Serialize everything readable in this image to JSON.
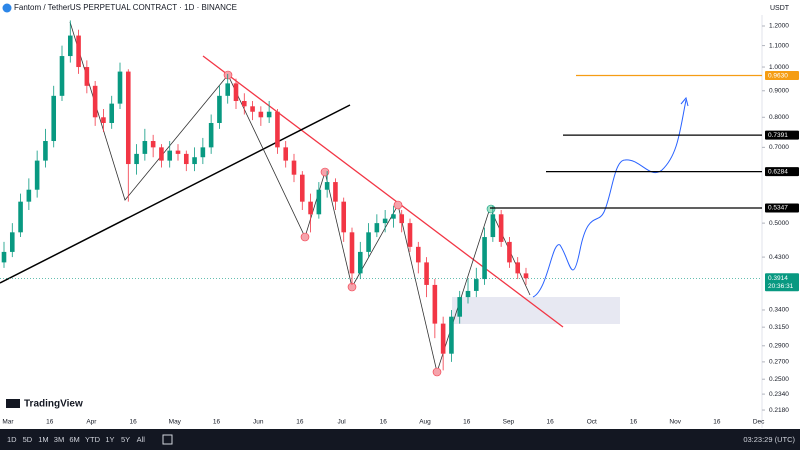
{
  "header": {
    "symbol": "Fantom / TetherUS PERPETUAL CONTRACT · 1D · BINANCE",
    "currency": "USDT",
    "brand": "TradingView"
  },
  "toolbar": {
    "ranges": [
      "1D",
      "5D",
      "1M",
      "3M",
      "6M",
      "YTD",
      "1Y",
      "5Y",
      "All"
    ],
    "clock": "03:23:29 (UTC)"
  },
  "chart_data": {
    "type": "candlestick",
    "up_color": "#089981",
    "down_color": "#f23645",
    "log_scale": true,
    "ylim": [
      0.204,
      1.26
    ],
    "yticks": [
      {
        "value": 1.2,
        "label": "1.2000"
      },
      {
        "value": 1.1,
        "label": "1.1000"
      },
      {
        "value": 1.0,
        "label": "1.0000"
      },
      {
        "value": 0.9,
        "label": "0.9000"
      },
      {
        "value": 0.8,
        "label": "0.8000"
      },
      {
        "value": 0.7,
        "label": "0.7000"
      },
      {
        "value": 0.5,
        "label": "0.5000"
      },
      {
        "value": 0.43,
        "label": "0.4300"
      },
      {
        "value": 0.34,
        "label": "0.3400"
      },
      {
        "value": 0.315,
        "label": "0.3150"
      },
      {
        "value": 0.29,
        "label": "0.2900"
      },
      {
        "value": 0.27,
        "label": "0.2700"
      },
      {
        "value": 0.25,
        "label": "0.2500"
      },
      {
        "value": 0.234,
        "label": "0.2340"
      },
      {
        "value": 0.218,
        "label": "0.2180"
      }
    ],
    "time_labels": [
      "Mar",
      "16",
      "Apr",
      "16",
      "May",
      "16",
      "Jun",
      "16",
      "Jul",
      "16",
      "Aug",
      "16",
      "Sep",
      "16",
      "Oct",
      "16",
      "Nov",
      "16",
      "Dec"
    ],
    "open": [
      0.42,
      0.44,
      0.48,
      0.55,
      0.58,
      0.66,
      0.72,
      0.88,
      1.05,
      1.15,
      1.0,
      0.92,
      0.8,
      0.78,
      0.85,
      0.98,
      0.65,
      0.68,
      0.72,
      0.7,
      0.66,
      0.69,
      0.68,
      0.65,
      0.67,
      0.7,
      0.78,
      0.88,
      0.93,
      0.86,
      0.84,
      0.82,
      0.8,
      0.82,
      0.7,
      0.66,
      0.62,
      0.55,
      0.52,
      0.58,
      0.6,
      0.55,
      0.48,
      0.4,
      0.44,
      0.48,
      0.5,
      0.51,
      0.52,
      0.5,
      0.45,
      0.42,
      0.38,
      0.32,
      0.28,
      0.33,
      0.36,
      0.37,
      0.39,
      0.47,
      0.52,
      0.46,
      0.42,
      0.4
    ],
    "high": [
      0.46,
      0.5,
      0.57,
      0.61,
      0.69,
      0.76,
      0.92,
      1.1,
      1.23,
      1.18,
      1.03,
      0.94,
      0.83,
      0.88,
      1.02,
      0.99,
      0.71,
      0.76,
      0.74,
      0.71,
      0.72,
      0.71,
      0.69,
      0.7,
      0.73,
      0.81,
      0.92,
      0.97,
      0.95,
      0.89,
      0.86,
      0.84,
      0.86,
      0.83,
      0.72,
      0.68,
      0.63,
      0.57,
      0.6,
      0.63,
      0.61,
      0.56,
      0.49,
      0.46,
      0.5,
      0.52,
      0.53,
      0.54,
      0.53,
      0.51,
      0.46,
      0.43,
      0.39,
      0.33,
      0.34,
      0.37,
      0.39,
      0.41,
      0.49,
      0.54,
      0.53,
      0.47,
      0.43,
      0.41
    ],
    "low": [
      0.41,
      0.43,
      0.47,
      0.53,
      0.56,
      0.64,
      0.7,
      0.86,
      1.02,
      0.97,
      0.89,
      0.77,
      0.75,
      0.76,
      0.83,
      0.55,
      0.62,
      0.66,
      0.67,
      0.64,
      0.64,
      0.66,
      0.63,
      0.63,
      0.65,
      0.68,
      0.76,
      0.85,
      0.83,
      0.81,
      0.79,
      0.77,
      0.78,
      0.68,
      0.64,
      0.6,
      0.53,
      0.48,
      0.51,
      0.56,
      0.53,
      0.46,
      0.38,
      0.39,
      0.43,
      0.47,
      0.48,
      0.49,
      0.48,
      0.44,
      0.4,
      0.36,
      0.3,
      0.26,
      0.27,
      0.32,
      0.35,
      0.36,
      0.38,
      0.46,
      0.45,
      0.41,
      0.39,
      0.38
    ],
    "close": [
      0.44,
      0.48,
      0.55,
      0.58,
      0.66,
      0.72,
      0.88,
      1.05,
      1.15,
      1.0,
      0.92,
      0.8,
      0.78,
      0.85,
      0.98,
      0.65,
      0.68,
      0.72,
      0.7,
      0.66,
      0.69,
      0.68,
      0.65,
      0.67,
      0.7,
      0.78,
      0.88,
      0.93,
      0.86,
      0.84,
      0.82,
      0.8,
      0.82,
      0.7,
      0.66,
      0.62,
      0.55,
      0.52,
      0.58,
      0.6,
      0.55,
      0.48,
      0.4,
      0.44,
      0.48,
      0.5,
      0.51,
      0.52,
      0.5,
      0.45,
      0.42,
      0.38,
      0.32,
      0.28,
      0.33,
      0.36,
      0.37,
      0.39,
      0.47,
      0.52,
      0.46,
      0.42,
      0.4,
      0.3914
    ],
    "levels": [
      {
        "value": 0.963,
        "label": "0.9630",
        "color": "#f59d14"
      },
      {
        "value": 0.7391,
        "label": "0.7391",
        "color": "#000000"
      },
      {
        "value": 0.6284,
        "label": "0.6284",
        "color": "#000000"
      },
      {
        "value": 0.5347,
        "label": "0.5347",
        "color": "#000000"
      }
    ],
    "last_price": 0.3914,
    "countdown": "20:36:31"
  }
}
